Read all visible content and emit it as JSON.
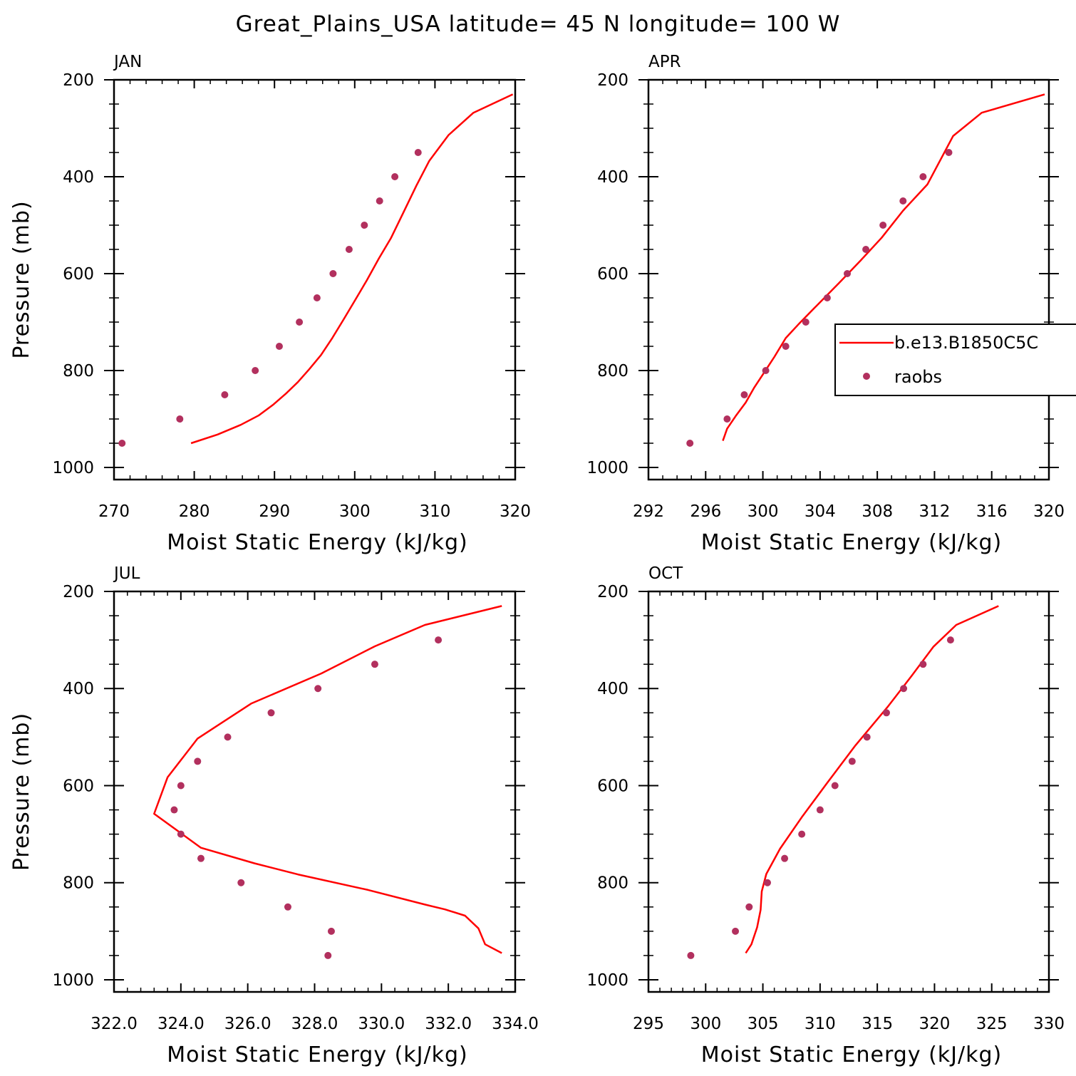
{
  "figure_title": "Great_Plains_USA  latitude= 45 N longitude= 100 W",
  "colors": {
    "model_line": "#ff0000",
    "obs_marker": "#b2305e",
    "axis": "#000000"
  },
  "legend": {
    "entries": [
      {
        "label": "b.e13.B1850C5C",
        "style": "line",
        "color": "#ff0000"
      },
      {
        "label": "raobs",
        "style": "marker",
        "color": "#b2305e"
      }
    ],
    "panel": "APR"
  },
  "chart_data": [
    {
      "type": "line",
      "panel": "JAN",
      "title": "JAN",
      "xlabel": "Moist Static Energy (kJ/kg)",
      "ylabel": "Pressure (mb)",
      "xlim": [
        270,
        320
      ],
      "ylim": [
        1025,
        200
      ],
      "y_reversed": true,
      "x_ticks": [
        "270",
        "280",
        "290",
        "300",
        "310",
        "320"
      ],
      "y_ticks": [
        "200",
        "400",
        "600",
        "800",
        "1000"
      ],
      "series": [
        {
          "name": "b.e13.B1850C5C",
          "style": "line",
          "x": [
            279.6,
            282.9,
            285.8,
            288.0,
            289.8,
            291.4,
            292.9,
            294.3,
            295.8,
            297.2,
            298.6,
            300.0,
            301.5,
            303.0,
            304.5,
            306.0,
            307.7,
            309.3,
            311.7,
            314.8,
            319.7
          ],
          "y": [
            950,
            932,
            912,
            893,
            871,
            848,
            824,
            798,
            768,
            733,
            695,
            656,
            614,
            569,
            527,
            476,
            418,
            367,
            314,
            268,
            230
          ]
        },
        {
          "name": "raobs",
          "style": "marker",
          "x": [
            271.0,
            278.2,
            283.8,
            287.6,
            290.6,
            293.1,
            295.3,
            297.3,
            299.3,
            301.2,
            303.1,
            305.0,
            307.9
          ],
          "y": [
            950,
            900,
            850,
            800,
            750,
            700,
            650,
            600,
            550,
            500,
            450,
            400,
            350
          ]
        }
      ]
    },
    {
      "type": "line",
      "panel": "APR",
      "title": "APR",
      "xlabel": "Moist Static Energy (kJ/kg)",
      "ylabel": "",
      "xlim": [
        292,
        320
      ],
      "ylim": [
        1025,
        200
      ],
      "y_reversed": true,
      "x_ticks": [
        "292",
        "296",
        "300",
        "304",
        "308",
        "312",
        "316",
        "320"
      ],
      "y_ticks": [
        "200",
        "400",
        "600",
        "800",
        "1000"
      ],
      "series": [
        {
          "name": "b.e13.B1850C5C",
          "style": "line",
          "x": [
            297.2,
            297.5,
            298.1,
            298.8,
            299.4,
            300.0,
            300.8,
            301.6,
            302.6,
            303.9,
            305.3,
            306.8,
            308.3,
            309.8,
            311.5,
            313.3,
            315.3,
            319.7
          ],
          "y": [
            945,
            920,
            894,
            866,
            835,
            808,
            772,
            733,
            701,
            662,
            620,
            574,
            526,
            470,
            416,
            316,
            268,
            230
          ]
        },
        {
          "name": "raobs",
          "style": "marker",
          "x": [
            294.9,
            297.5,
            298.7,
            300.2,
            301.6,
            303.0,
            304.5,
            305.9,
            307.2,
            308.4,
            309.8,
            311.2,
            313.0
          ],
          "y": [
            950,
            900,
            850,
            800,
            750,
            700,
            650,
            600,
            550,
            500,
            450,
            400,
            350
          ]
        }
      ]
    },
    {
      "type": "line",
      "panel": "JUL",
      "title": "JUL",
      "xlabel": "Moist Static Energy (kJ/kg)",
      "ylabel": "Pressure (mb)",
      "xlim": [
        322.0,
        334.0
      ],
      "ylim": [
        1025,
        200
      ],
      "y_reversed": true,
      "x_ticks": [
        "322.0",
        "324.0",
        "326.0",
        "328.0",
        "330.0",
        "332.0",
        "334.0"
      ],
      "y_ticks": [
        "200",
        "400",
        "600",
        "800",
        "1000"
      ],
      "series": [
        {
          "name": "b.e13.B1850C5C",
          "style": "line",
          "x": [
            333.6,
            333.1,
            332.9,
            332.5,
            331.9,
            331.3,
            329.6,
            327.5,
            326.2,
            324.6,
            323.2,
            323.6,
            324.5,
            326.1,
            328.2,
            329.8,
            331.3,
            333.6
          ],
          "y": [
            945,
            927,
            894,
            868,
            855,
            845,
            815,
            783,
            760,
            728,
            658,
            583,
            503,
            431,
            369,
            313,
            269,
            230
          ]
        },
        {
          "name": "raobs",
          "style": "marker",
          "x": [
            328.4,
            328.5,
            327.2,
            325.8,
            324.6,
            324.0,
            323.8,
            324.0,
            324.5,
            325.4,
            326.7,
            328.1,
            329.8,
            331.7
          ],
          "y": [
            950,
            900,
            850,
            800,
            750,
            700,
            650,
            600,
            550,
            500,
            450,
            400,
            350,
            300
          ]
        }
      ]
    },
    {
      "type": "line",
      "panel": "OCT",
      "title": "OCT",
      "xlabel": "Moist Static Energy (kJ/kg)",
      "ylabel": "",
      "xlim": [
        295,
        330
      ],
      "ylim": [
        1025,
        200
      ],
      "y_reversed": true,
      "x_ticks": [
        "295",
        "300",
        "305",
        "310",
        "315",
        "320",
        "325",
        "330"
      ],
      "y_ticks": [
        "200",
        "400",
        "600",
        "800",
        "1000"
      ],
      "series": [
        {
          "name": "b.e13.B1850C5C",
          "style": "line",
          "x": [
            303.5,
            304.0,
            304.5,
            304.8,
            304.9,
            305.3,
            306.5,
            308.4,
            310.6,
            313.1,
            315.9,
            318.0,
            319.9,
            321.9,
            325.6
          ],
          "y": [
            945,
            927,
            892,
            856,
            818,
            782,
            730,
            665,
            595,
            517,
            438,
            374,
            314,
            269,
            230
          ]
        },
        {
          "name": "raobs",
          "style": "marker",
          "x": [
            298.7,
            302.6,
            303.8,
            305.4,
            306.9,
            308.4,
            310.0,
            311.3,
            312.8,
            314.1,
            315.8,
            317.3,
            319.0,
            321.4
          ],
          "y": [
            950,
            900,
            850,
            800,
            750,
            700,
            650,
            600,
            550,
            500,
            450,
            400,
            350,
            300
          ]
        }
      ]
    }
  ]
}
